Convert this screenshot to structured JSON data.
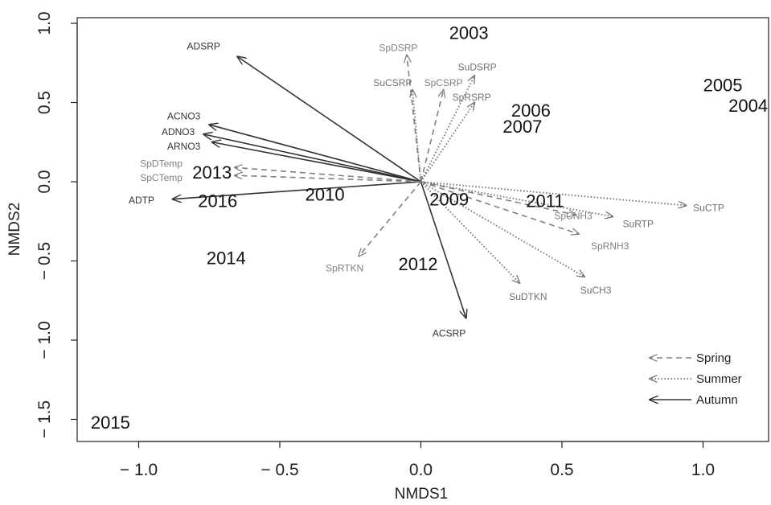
{
  "chart_data": {
    "type": "scatter",
    "xlabel": "NMDS1",
    "ylabel": "NMDS2",
    "xlim": [
      -1.2,
      1.25
    ],
    "ylim": [
      -1.6,
      1.05
    ],
    "x_ticks": [
      -1.0,
      -0.5,
      0.0,
      0.5,
      1.0
    ],
    "y_ticks": [
      1.0,
      0.5,
      0.0,
      -0.5,
      -1.0,
      -1.5
    ],
    "x_tick_labels": [
      "− 1.0",
      "− 0.5",
      "0.0",
      "0.5",
      "1.0"
    ],
    "y_tick_labels": [
      "1.0",
      "0.5",
      "0.0",
      "− 0.5",
      "− 1.0",
      "− 1.5"
    ],
    "years": [
      {
        "label": "2003",
        "x": 0.17,
        "y": 0.93
      },
      {
        "label": "2005",
        "x": 1.07,
        "y": 0.6
      },
      {
        "label": "2004",
        "x": 1.16,
        "y": 0.47
      },
      {
        "label": "2006",
        "x": 0.39,
        "y": 0.44
      },
      {
        "label": "2007",
        "x": 0.36,
        "y": 0.34
      },
      {
        "label": "2013",
        "x": -0.74,
        "y": 0.05
      },
      {
        "label": "2010",
        "x": -0.34,
        "y": -0.09
      },
      {
        "label": "2016",
        "x": -0.72,
        "y": -0.13
      },
      {
        "label": "2009",
        "x": 0.1,
        "y": -0.12
      },
      {
        "label": "2011",
        "x": 0.44,
        "y": -0.13
      },
      {
        "label": "2014",
        "x": -0.69,
        "y": -0.49
      },
      {
        "label": "2012",
        "x": -0.01,
        "y": -0.53
      },
      {
        "label": "2015",
        "x": -1.1,
        "y": -1.53
      }
    ],
    "vectors": [
      {
        "label": "ADSRP",
        "season": "Autumn",
        "x": -0.65,
        "y": 0.79,
        "lx": -0.77,
        "ly": 0.85
      },
      {
        "label": "ACNO3",
        "season": "Autumn",
        "x": -0.75,
        "y": 0.36,
        "lx": -0.84,
        "ly": 0.41
      },
      {
        "label": "ADNO3",
        "season": "Autumn",
        "x": -0.77,
        "y": 0.3,
        "lx": -0.86,
        "ly": 0.31
      },
      {
        "label": "ARNO3",
        "season": "Autumn",
        "x": -0.74,
        "y": 0.25,
        "lx": -0.84,
        "ly": 0.22
      },
      {
        "label": "ADTP",
        "season": "Autumn",
        "x": -0.88,
        "y": -0.11,
        "lx": -0.99,
        "ly": -0.12
      },
      {
        "label": "ACSRP",
        "season": "Autumn",
        "x": 0.16,
        "y": -0.86,
        "lx": 0.1,
        "ly": -0.96
      },
      {
        "label": "SpDSRP",
        "season": "Spring",
        "x": -0.05,
        "y": 0.8,
        "lx": -0.08,
        "ly": 0.84
      },
      {
        "label": "SpCSRP",
        "season": "Spring",
        "x": 0.08,
        "y": 0.58,
        "lx": 0.08,
        "ly": 0.62
      },
      {
        "label": "SpDTemp",
        "season": "Spring",
        "x": -0.66,
        "y": 0.09,
        "lx": -0.92,
        "ly": 0.11
      },
      {
        "label": "SpCTemp",
        "season": "Spring",
        "x": -0.66,
        "y": 0.04,
        "lx": -0.92,
        "ly": 0.02
      },
      {
        "label": "SpRTKN",
        "season": "Spring",
        "x": -0.22,
        "y": -0.47,
        "lx": -0.27,
        "ly": -0.55
      },
      {
        "label": "SpCNH3",
        "season": "Spring",
        "x": 0.55,
        "y": -0.21,
        "lx": 0.54,
        "ly": -0.22
      },
      {
        "label": "SpRNH3",
        "season": "Spring",
        "x": 0.56,
        "y": -0.33,
        "lx": 0.67,
        "ly": -0.41
      },
      {
        "label": "SuCSRP",
        "season": "Summer",
        "x": -0.03,
        "y": 0.58,
        "lx": -0.1,
        "ly": 0.62
      },
      {
        "label": "SuDSRP",
        "season": "Summer",
        "x": 0.19,
        "y": 0.67,
        "lx": 0.2,
        "ly": 0.72
      },
      {
        "label": "SpRSRP",
        "season": "Summer",
        "x": 0.19,
        "y": 0.5,
        "lx": 0.18,
        "ly": 0.53
      },
      {
        "label": "SuCTP",
        "season": "Summer",
        "x": 0.94,
        "y": -0.15,
        "lx": 1.02,
        "ly": -0.17
      },
      {
        "label": "SuRTP",
        "season": "Summer",
        "x": 0.68,
        "y": -0.22,
        "lx": 0.77,
        "ly": -0.27
      },
      {
        "label": "SuDTKN",
        "season": "Summer",
        "x": 0.35,
        "y": -0.64,
        "lx": 0.38,
        "ly": -0.73
      },
      {
        "label": "SuCH3",
        "season": "Summer",
        "x": 0.58,
        "y": -0.6,
        "lx": 0.62,
        "ly": -0.69
      }
    ],
    "legend": {
      "placement": "bottom-right",
      "entries": [
        {
          "name": "Spring",
          "style": "dashed"
        },
        {
          "name": "Summer",
          "style": "dotted"
        },
        {
          "name": "Autumn",
          "style": "solid"
        }
      ]
    },
    "grid": false,
    "colors": {
      "autumn": "#333333",
      "spring": "#808080",
      "summer": "#707070",
      "text": "#111111"
    }
  }
}
